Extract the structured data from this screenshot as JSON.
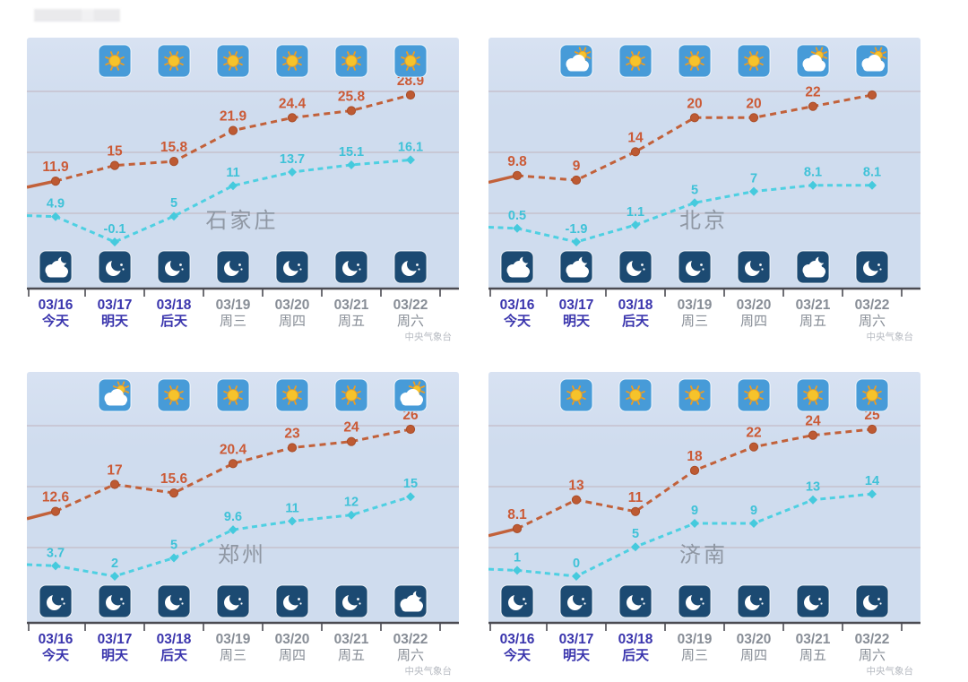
{
  "source_label": "中央气象台",
  "colors": {
    "panel_bg": "#cfdcee",
    "panel_bg_top": "#d8e2f2",
    "grid": "#c4bcc6",
    "axis": "#4b4b52",
    "high_line": "#c2613a",
    "high_label": "#cb5a36",
    "low_line": "#4ed0e2",
    "low_label": "#3fc2d8",
    "date_highlight": "#3a35ad",
    "date_normal": "#878d96",
    "city": "#8f97a3",
    "watermark": "#b6bac1",
    "day_icon_bg": "#479bd8",
    "night_icon_bg": "#1c4a72",
    "sun": "#f6c32b",
    "sun_rays": "#ec9e22"
  },
  "dates": [
    {
      "date": "03/16",
      "label": "今天",
      "highlight": true
    },
    {
      "date": "03/17",
      "label": "明天",
      "highlight": true
    },
    {
      "date": "03/18",
      "label": "后天",
      "highlight": true
    },
    {
      "date": "03/19",
      "label": "周三",
      "highlight": false
    },
    {
      "date": "03/20",
      "label": "周四",
      "highlight": false
    },
    {
      "date": "03/21",
      "label": "周五",
      "highlight": false
    },
    {
      "date": "03/22",
      "label": "周六",
      "highlight": false
    }
  ],
  "chart_data": [
    {
      "type": "line",
      "title": "石家庄",
      "categories": [
        "03/16",
        "03/17",
        "03/18",
        "03/19",
        "03/20",
        "03/21",
        "03/22"
      ],
      "xlabel": "",
      "ylabel": "",
      "ylim": [
        -2,
        31
      ],
      "series": [
        {
          "name": "high",
          "values": [
            11.9,
            15,
            15.8,
            21.9,
            24.4,
            25.8,
            28.9
          ],
          "labels": [
            "11.9",
            "15",
            "15.8",
            "21.9",
            "24.4",
            "25.8",
            "28.9"
          ]
        },
        {
          "name": "low",
          "values": [
            4.9,
            -0.1,
            5,
            11,
            13.7,
            15.1,
            16.1
          ],
          "labels": [
            "4.9",
            "-0.1",
            "5",
            "11",
            "13.7",
            "15.1",
            "16.1"
          ]
        }
      ],
      "day_icons": [
        "none",
        "sun",
        "sun",
        "sun",
        "sun",
        "sun",
        "sun"
      ],
      "night_icons": [
        "cloud-moon",
        "moon",
        "moon",
        "moon",
        "moon",
        "moon",
        "moon"
      ]
    },
    {
      "type": "line",
      "title": "北京",
      "categories": [
        "03/16",
        "03/17",
        "03/18",
        "03/19",
        "03/20",
        "03/21",
        "03/22"
      ],
      "xlabel": "",
      "ylabel": "",
      "ylim": [
        -4,
        26
      ],
      "series": [
        {
          "name": "high",
          "values": [
            9.8,
            9,
            14,
            20,
            20,
            22,
            24
          ],
          "labels": [
            "9.8",
            "9",
            "14",
            "20",
            "20",
            "22",
            ""
          ]
        },
        {
          "name": "low",
          "values": [
            0.5,
            -1.9,
            1.1,
            5,
            7,
            8.1,
            8.1
          ],
          "labels": [
            "0.5",
            "-1.9",
            "1.1",
            "5",
            "7",
            "8.1",
            "8.1"
          ]
        }
      ],
      "day_icons": [
        "none",
        "cloud-sun",
        "sun",
        "sun",
        "sun",
        "cloud-sun",
        "cloud-sun"
      ],
      "night_icons": [
        "cloud-moon",
        "cloud-moon",
        "moon",
        "moon",
        "moon",
        "cloud-moon",
        "moon"
      ]
    },
    {
      "type": "line",
      "title": "郑州",
      "categories": [
        "03/16",
        "03/17",
        "03/18",
        "03/19",
        "03/20",
        "03/21",
        "03/22"
      ],
      "xlabel": "",
      "ylabel": "",
      "ylim": [
        0,
        28
      ],
      "series": [
        {
          "name": "high",
          "values": [
            12.6,
            17,
            15.6,
            20.4,
            23,
            24,
            26
          ],
          "labels": [
            "12.6",
            "17",
            "15.6",
            "20.4",
            "23",
            "24",
            "26"
          ]
        },
        {
          "name": "low",
          "values": [
            3.7,
            2,
            5,
            9.6,
            11,
            12,
            15
          ],
          "labels": [
            "3.7",
            "2",
            "5",
            "9.6",
            "11",
            "12",
            "15"
          ]
        }
      ],
      "day_icons": [
        "none",
        "cloud-sun",
        "sun",
        "sun",
        "sun",
        "sun",
        "cloud-sun"
      ],
      "night_icons": [
        "moon",
        "moon",
        "moon",
        "moon",
        "moon",
        "moon",
        "cloud-moon"
      ]
    },
    {
      "type": "line",
      "title": "济南",
      "categories": [
        "03/16",
        "03/17",
        "03/18",
        "03/19",
        "03/20",
        "03/21",
        "03/22"
      ],
      "xlabel": "",
      "ylabel": "",
      "ylim": [
        -2,
        27
      ],
      "series": [
        {
          "name": "high",
          "values": [
            8.1,
            13,
            11,
            18,
            22,
            24,
            25
          ],
          "labels": [
            "8.1",
            "13",
            "11",
            "18",
            "22",
            "24",
            "25"
          ]
        },
        {
          "name": "low",
          "values": [
            1,
            0,
            5,
            9,
            9,
            13,
            14
          ],
          "labels": [
            "1",
            "0",
            "5",
            "9",
            "9",
            "13",
            "14"
          ]
        }
      ],
      "day_icons": [
        "none",
        "sun",
        "sun",
        "sun",
        "sun",
        "sun",
        "sun"
      ],
      "night_icons": [
        "moon",
        "moon",
        "moon",
        "moon",
        "moon",
        "moon",
        "moon"
      ]
    }
  ]
}
